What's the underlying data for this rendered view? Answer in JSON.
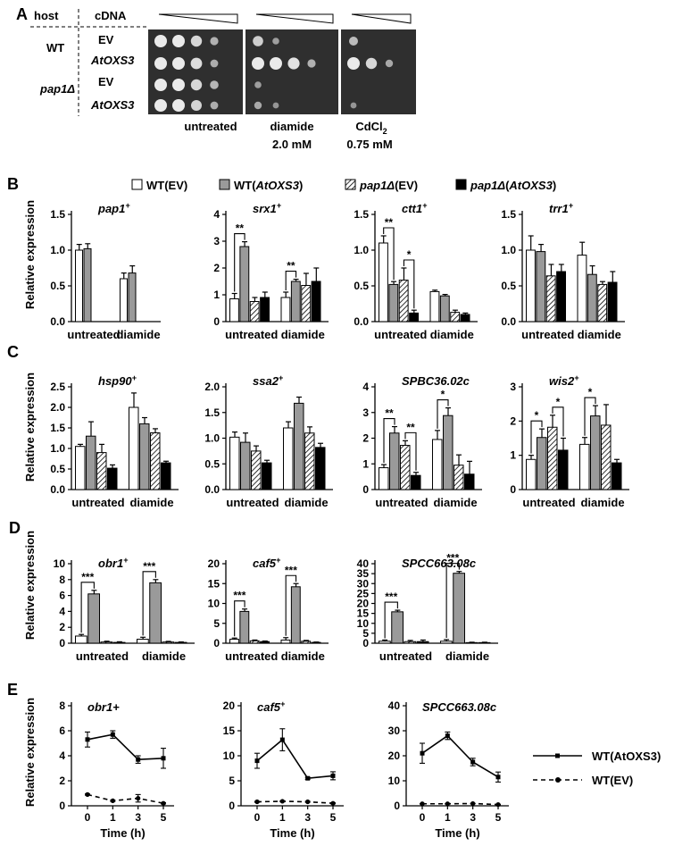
{
  "panel_labels": [
    "A",
    "B",
    "C",
    "D",
    "E"
  ],
  "panelA": {
    "header_host": "host",
    "header_cdna": "cDNA",
    "hosts": [
      "WT",
      "pap1Δ"
    ],
    "cdnas": [
      "EV",
      "AtOXS3",
      "EV",
      "AtOXS3"
    ],
    "treatments": [
      {
        "line1": "untreated",
        "line2": ""
      },
      {
        "line1": "diamide",
        "line2": "2.0 mM"
      },
      {
        "line1": "CdCl",
        "sub": "2",
        "line2": "0.75 mM"
      }
    ]
  },
  "legend": {
    "items": [
      {
        "label": "WT(EV)",
        "style": "white"
      },
      {
        "label_pre": "WT(",
        "label_em": "AtOXS3",
        "label_post": ")",
        "style": "gray"
      },
      {
        "label_em": "pap1Δ",
        "label_post": "(EV)",
        "style": "hatch"
      },
      {
        "label_em": "pap1Δ",
        "label_post": "(",
        "label_em2": "AtOXS3",
        "label_post2": ")",
        "style": "black"
      }
    ]
  },
  "common": {
    "ylabel": "Relative expression",
    "groups": [
      "untreated",
      "diamide"
    ],
    "time_xlabel": "Time (h)",
    "line_legend": [
      "WT(AtOXS3)",
      "WT(EV)"
    ],
    "colors": {
      "white": "#ffffff",
      "gray": "#9a9a9a",
      "black": "#000000",
      "axis": "#000000"
    }
  },
  "chart_data": [
    {
      "panel": "B",
      "type": "bar",
      "title": "pap1",
      "sup": "+",
      "ylim": [
        0,
        1.5
      ],
      "yticks": [
        0,
        0.5,
        1.0,
        1.5
      ],
      "ytick_labels": [
        "0.0",
        "0.5",
        "1.0",
        "1.5"
      ],
      "series": [
        {
          "name": "WT(EV)",
          "style": "white",
          "values": [
            1.0,
            0.6
          ],
          "errors": [
            0.08,
            0.08
          ]
        },
        {
          "name": "WT(AtOXS3)",
          "style": "gray",
          "values": [
            1.02,
            0.68
          ],
          "errors": [
            0.07,
            0.1
          ]
        },
        {
          "name": "pap1Δ(EV)",
          "style": "hatch",
          "values": [
            0,
            0
          ],
          "errors": [
            0,
            0
          ]
        },
        {
          "name": "pap1Δ(AtOXS3)",
          "style": "black",
          "values": [
            0,
            0
          ],
          "errors": [
            0,
            0
          ]
        }
      ],
      "sig": []
    },
    {
      "panel": "B",
      "type": "bar",
      "title": "srx1",
      "sup": "+",
      "ylim": [
        0,
        4
      ],
      "yticks": [
        0,
        1,
        2,
        3,
        4
      ],
      "ytick_labels": [
        "0",
        "1",
        "2",
        "3",
        "4"
      ],
      "series": [
        {
          "name": "WT(EV)",
          "style": "white",
          "values": [
            0.85,
            0.9
          ],
          "errors": [
            0.2,
            0.2
          ]
        },
        {
          "name": "WT(AtOXS3)",
          "style": "gray",
          "values": [
            2.8,
            1.5
          ],
          "errors": [
            0.18,
            0.08
          ]
        },
        {
          "name": "pap1Δ(EV)",
          "style": "hatch",
          "values": [
            0.75,
            1.35
          ],
          "errors": [
            0.15,
            0.45
          ]
        },
        {
          "name": "pap1Δ(AtOXS3)",
          "style": "black",
          "values": [
            0.9,
            1.5
          ],
          "errors": [
            0.2,
            0.5
          ]
        }
      ],
      "sig": [
        {
          "group": 0,
          "from": 0,
          "to": 1,
          "label": "**"
        },
        {
          "group": 1,
          "from": 0,
          "to": 1,
          "label": "**"
        }
      ]
    },
    {
      "panel": "B",
      "type": "bar",
      "title": "ctt1",
      "sup": "+",
      "ylim": [
        0,
        1.5
      ],
      "yticks": [
        0,
        0.5,
        1.0,
        1.5
      ],
      "ytick_labels": [
        "0.0",
        "0.5",
        "1.0",
        "1.5"
      ],
      "series": [
        {
          "name": "WT(EV)",
          "style": "white",
          "values": [
            1.1,
            0.42
          ],
          "errors": [
            0.1,
            0.02
          ]
        },
        {
          "name": "WT(AtOXS3)",
          "style": "gray",
          "values": [
            0.52,
            0.36
          ],
          "errors": [
            0.04,
            0.02
          ]
        },
        {
          "name": "pap1Δ(EV)",
          "style": "hatch",
          "values": [
            0.58,
            0.13
          ],
          "errors": [
            0.17,
            0.03
          ]
        },
        {
          "name": "pap1Δ(AtOXS3)",
          "style": "black",
          "values": [
            0.12,
            0.1
          ],
          "errors": [
            0.04,
            0.02
          ]
        }
      ],
      "sig": [
        {
          "group": 0,
          "from": 0,
          "to": 1,
          "label": "**"
        },
        {
          "group": 0,
          "from": 2,
          "to": 3,
          "label": "*"
        }
      ]
    },
    {
      "panel": "B",
      "type": "bar",
      "title": "trr1",
      "sup": "+",
      "ylim": [
        0,
        1.5
      ],
      "yticks": [
        0,
        0.5,
        1.0,
        1.5
      ],
      "ytick_labels": [
        "0.0",
        "0.5",
        "1.0",
        "1.5"
      ],
      "series": [
        {
          "name": "WT(EV)",
          "style": "white",
          "values": [
            1.0,
            0.93
          ],
          "errors": [
            0.2,
            0.18
          ]
        },
        {
          "name": "WT(AtOXS3)",
          "style": "gray",
          "values": [
            0.98,
            0.66
          ],
          "errors": [
            0.1,
            0.12
          ]
        },
        {
          "name": "pap1Δ(EV)",
          "style": "hatch",
          "values": [
            0.64,
            0.52
          ],
          "errors": [
            0.16,
            0.04
          ]
        },
        {
          "name": "pap1Δ(AtOXS3)",
          "style": "black",
          "values": [
            0.7,
            0.55
          ],
          "errors": [
            0.1,
            0.15
          ]
        }
      ],
      "sig": []
    },
    {
      "panel": "C",
      "type": "bar",
      "title": "hsp90",
      "sup": "+",
      "ylim": [
        0,
        2.5
      ],
      "yticks": [
        0,
        0.5,
        1.0,
        1.5,
        2.0,
        2.5
      ],
      "ytick_labels": [
        "0.0",
        "0.5",
        "1.0",
        "1.5",
        "2.0",
        "2.5"
      ],
      "series": [
        {
          "name": "WT(EV)",
          "style": "white",
          "values": [
            1.05,
            2.0
          ],
          "errors": [
            0.05,
            0.35
          ]
        },
        {
          "name": "WT(AtOXS3)",
          "style": "gray",
          "values": [
            1.3,
            1.6
          ],
          "errors": [
            0.35,
            0.15
          ]
        },
        {
          "name": "pap1Δ(EV)",
          "style": "hatch",
          "values": [
            0.9,
            1.38
          ],
          "errors": [
            0.2,
            0.1
          ]
        },
        {
          "name": "pap1Δ(AtOXS3)",
          "style": "black",
          "values": [
            0.52,
            0.65
          ],
          "errors": [
            0.08,
            0.04
          ]
        }
      ],
      "sig": []
    },
    {
      "panel": "C",
      "type": "bar",
      "title": "ssa2",
      "sup": "+",
      "ylim": [
        0,
        2.0
      ],
      "yticks": [
        0,
        0.5,
        1.0,
        1.5,
        2.0
      ],
      "ytick_labels": [
        "0.0",
        "0.5",
        "1.0",
        "1.5",
        "2.0"
      ],
      "series": [
        {
          "name": "WT(EV)",
          "style": "white",
          "values": [
            1.02,
            1.2
          ],
          "errors": [
            0.1,
            0.12
          ]
        },
        {
          "name": "WT(AtOXS3)",
          "style": "gray",
          "values": [
            0.92,
            1.68
          ],
          "errors": [
            0.18,
            0.12
          ]
        },
        {
          "name": "pap1Δ(EV)",
          "style": "hatch",
          "values": [
            0.75,
            1.1
          ],
          "errors": [
            0.1,
            0.12
          ]
        },
        {
          "name": "pap1Δ(AtOXS3)",
          "style": "black",
          "values": [
            0.52,
            0.82
          ],
          "errors": [
            0.05,
            0.08
          ]
        }
      ],
      "sig": []
    },
    {
      "panel": "C",
      "type": "bar",
      "title": "SPBC36.02c",
      "sup": "",
      "ylim": [
        0,
        4
      ],
      "yticks": [
        0,
        1,
        2,
        3,
        4
      ],
      "ytick_labels": [
        "0",
        "1",
        "2",
        "3",
        "4"
      ],
      "series": [
        {
          "name": "WT(EV)",
          "style": "white",
          "values": [
            0.85,
            1.95
          ],
          "errors": [
            0.12,
            0.35
          ]
        },
        {
          "name": "WT(AtOXS3)",
          "style": "gray",
          "values": [
            2.2,
            2.88
          ],
          "errors": [
            0.25,
            0.3
          ]
        },
        {
          "name": "pap1Δ(EV)",
          "style": "hatch",
          "values": [
            1.72,
            0.95
          ],
          "errors": [
            0.18,
            0.4
          ]
        },
        {
          "name": "pap1Δ(AtOXS3)",
          "style": "black",
          "values": [
            0.55,
            0.6
          ],
          "errors": [
            0.12,
            0.5
          ]
        }
      ],
      "sig": [
        {
          "group": 0,
          "from": 0,
          "to": 1,
          "label": "**"
        },
        {
          "group": 0,
          "from": 2,
          "to": 3,
          "label": "**"
        },
        {
          "group": 1,
          "from": 0,
          "to": 1,
          "label": "*"
        }
      ]
    },
    {
      "panel": "C",
      "type": "bar",
      "title": "wis2",
      "sup": "+",
      "ylim": [
        0,
        3
      ],
      "yticks": [
        0,
        1,
        2,
        3
      ],
      "ytick_labels": [
        "0",
        "1",
        "2",
        "3"
      ],
      "series": [
        {
          "name": "WT(EV)",
          "style": "white",
          "values": [
            0.88,
            1.32
          ],
          "errors": [
            0.12,
            0.2
          ]
        },
        {
          "name": "WT(AtOXS3)",
          "style": "gray",
          "values": [
            1.52,
            2.15
          ],
          "errors": [
            0.25,
            0.3
          ]
        },
        {
          "name": "pap1Δ(EV)",
          "style": "hatch",
          "values": [
            1.82,
            1.88
          ],
          "errors": [
            0.35,
            0.6
          ]
        },
        {
          "name": "pap1Δ(AtOXS3)",
          "style": "black",
          "values": [
            1.15,
            0.78
          ],
          "errors": [
            0.35,
            0.1
          ]
        }
      ],
      "sig": [
        {
          "group": 0,
          "from": 0,
          "to": 1,
          "label": "*"
        },
        {
          "group": 0,
          "from": 2,
          "to": 3,
          "label": "*"
        },
        {
          "group": 1,
          "from": 0,
          "to": 1,
          "label": "*"
        }
      ]
    },
    {
      "panel": "D",
      "type": "bar",
      "title": "obr1",
      "sup": "+",
      "ylim": [
        0,
        10
      ],
      "yticks": [
        0,
        2,
        4,
        6,
        8,
        10
      ],
      "ytick_labels": [
        "0",
        "2",
        "4",
        "6",
        "8",
        "10"
      ],
      "series": [
        {
          "name": "WT(EV)",
          "style": "white",
          "values": [
            0.9,
            0.5
          ],
          "errors": [
            0.2,
            0.25
          ]
        },
        {
          "name": "WT(AtOXS3)",
          "style": "gray",
          "values": [
            6.2,
            7.6
          ],
          "errors": [
            0.45,
            0.4
          ]
        },
        {
          "name": "pap1Δ(EV)",
          "style": "hatch",
          "values": [
            0.15,
            0.15
          ],
          "errors": [
            0.1,
            0.08
          ]
        },
        {
          "name": "pap1Δ(AtOXS3)",
          "style": "black",
          "values": [
            0.1,
            0.1
          ],
          "errors": [
            0.08,
            0.06
          ]
        }
      ],
      "sig": [
        {
          "group": 0,
          "from": 0,
          "to": 1,
          "label": "***"
        },
        {
          "group": 1,
          "from": 0,
          "to": 1,
          "label": "***"
        }
      ]
    },
    {
      "panel": "D",
      "type": "bar",
      "title": "caf5",
      "sup": "+",
      "ylim": [
        0,
        20
      ],
      "yticks": [
        0,
        5,
        10,
        15,
        20
      ],
      "ytick_labels": [
        "0",
        "5",
        "10",
        "15",
        "20"
      ],
      "series": [
        {
          "name": "WT(EV)",
          "style": "white",
          "values": [
            1.0,
            0.8
          ],
          "errors": [
            0.3,
            0.6
          ]
        },
        {
          "name": "WT(AtOXS3)",
          "style": "gray",
          "values": [
            8.0,
            14.2
          ],
          "errors": [
            0.6,
            0.8
          ]
        },
        {
          "name": "pap1Δ(EV)",
          "style": "hatch",
          "values": [
            0.6,
            0.5
          ],
          "errors": [
            0.2,
            0.2
          ]
        },
        {
          "name": "pap1Δ(AtOXS3)",
          "style": "black",
          "values": [
            0.4,
            0.2
          ],
          "errors": [
            0.15,
            0.1
          ]
        }
      ],
      "sig": [
        {
          "group": 0,
          "from": 0,
          "to": 1,
          "label": "***"
        },
        {
          "group": 1,
          "from": 0,
          "to": 1,
          "label": "***"
        }
      ]
    },
    {
      "panel": "D",
      "type": "bar",
      "title": "SPCC663.08c",
      "sup": "",
      "ylim": [
        0,
        40
      ],
      "yticks": [
        0,
        5,
        10,
        15,
        20,
        25,
        30,
        35,
        40
      ],
      "ytick_labels": [
        "0",
        "5",
        "10",
        "15",
        "20",
        "25",
        "30",
        "35",
        "40"
      ],
      "series": [
        {
          "name": "WT(EV)",
          "style": "white",
          "values": [
            1.0,
            1.0
          ],
          "errors": [
            0.6,
            0.8
          ]
        },
        {
          "name": "WT(AtOXS3)",
          "style": "gray",
          "values": [
            15.8,
            35.2
          ],
          "errors": [
            0.8,
            0.9
          ]
        },
        {
          "name": "pap1Δ(EV)",
          "style": "hatch",
          "values": [
            0.8,
            0.3
          ],
          "errors": [
            0.6,
            0.2
          ]
        },
        {
          "name": "pap1Δ(AtOXS3)",
          "style": "black",
          "values": [
            0.8,
            0.3
          ],
          "errors": [
            0.8,
            0.2
          ]
        }
      ],
      "sig": [
        {
          "group": 0,
          "from": 0,
          "to": 1,
          "label": "***"
        },
        {
          "group": 1,
          "from": 0,
          "to": 1,
          "label": "***"
        }
      ]
    },
    {
      "panel": "E",
      "type": "line",
      "title": "obr1+",
      "sup": "",
      "x": [
        0,
        1,
        3,
        5
      ],
      "xtick_labels": [
        "0",
        "1",
        "3",
        "5"
      ],
      "ylim": [
        0,
        8
      ],
      "yticks": [
        0,
        2,
        4,
        6,
        8
      ],
      "ytick_labels": [
        "0",
        "2",
        "4",
        "6",
        "8"
      ],
      "series": [
        {
          "name": "WT(AtOXS3)",
          "dash": false,
          "values": [
            5.3,
            5.7,
            3.7,
            3.8
          ],
          "errors": [
            0.6,
            0.3,
            0.3,
            0.8
          ]
        },
        {
          "name": "WT(EV)",
          "dash": true,
          "values": [
            0.9,
            0.4,
            0.6,
            0.2
          ],
          "errors": [
            0.05,
            0.05,
            0.3,
            0.05
          ]
        }
      ]
    },
    {
      "panel": "E",
      "type": "line",
      "title": "caf5",
      "sup": "+",
      "x": [
        0,
        1,
        3,
        5
      ],
      "xtick_labels": [
        "0",
        "1",
        "3",
        "5"
      ],
      "ylim": [
        0,
        20
      ],
      "yticks": [
        0,
        5,
        10,
        15,
        20
      ],
      "ytick_labels": [
        "0",
        "5",
        "10",
        "15",
        "20"
      ],
      "series": [
        {
          "name": "WT(AtOXS3)",
          "dash": false,
          "values": [
            9.0,
            13.2,
            5.5,
            6.0
          ],
          "errors": [
            1.5,
            2.2,
            0.2,
            0.8
          ]
        },
        {
          "name": "WT(EV)",
          "dash": true,
          "values": [
            0.8,
            0.9,
            0.8,
            0.5
          ],
          "errors": [
            0.1,
            0.1,
            0.1,
            0.1
          ]
        }
      ]
    },
    {
      "panel": "E",
      "type": "line",
      "title": "SPCC663.08c",
      "sup": "",
      "x": [
        0,
        1,
        3,
        5
      ],
      "xtick_labels": [
        "0",
        "1",
        "3",
        "5"
      ],
      "ylim": [
        0,
        40
      ],
      "yticks": [
        0,
        10,
        20,
        30,
        40
      ],
      "ytick_labels": [
        "0",
        "10",
        "20",
        "30",
        "40"
      ],
      "series": [
        {
          "name": "WT(AtOXS3)",
          "dash": false,
          "values": [
            21.0,
            28.0,
            17.5,
            11.5
          ],
          "errors": [
            4.0,
            1.5,
            1.5,
            2.0
          ]
        },
        {
          "name": "WT(EV)",
          "dash": true,
          "values": [
            0.8,
            0.8,
            0.9,
            0.5
          ],
          "errors": [
            0.1,
            0.1,
            0.1,
            0.1
          ]
        }
      ]
    }
  ]
}
